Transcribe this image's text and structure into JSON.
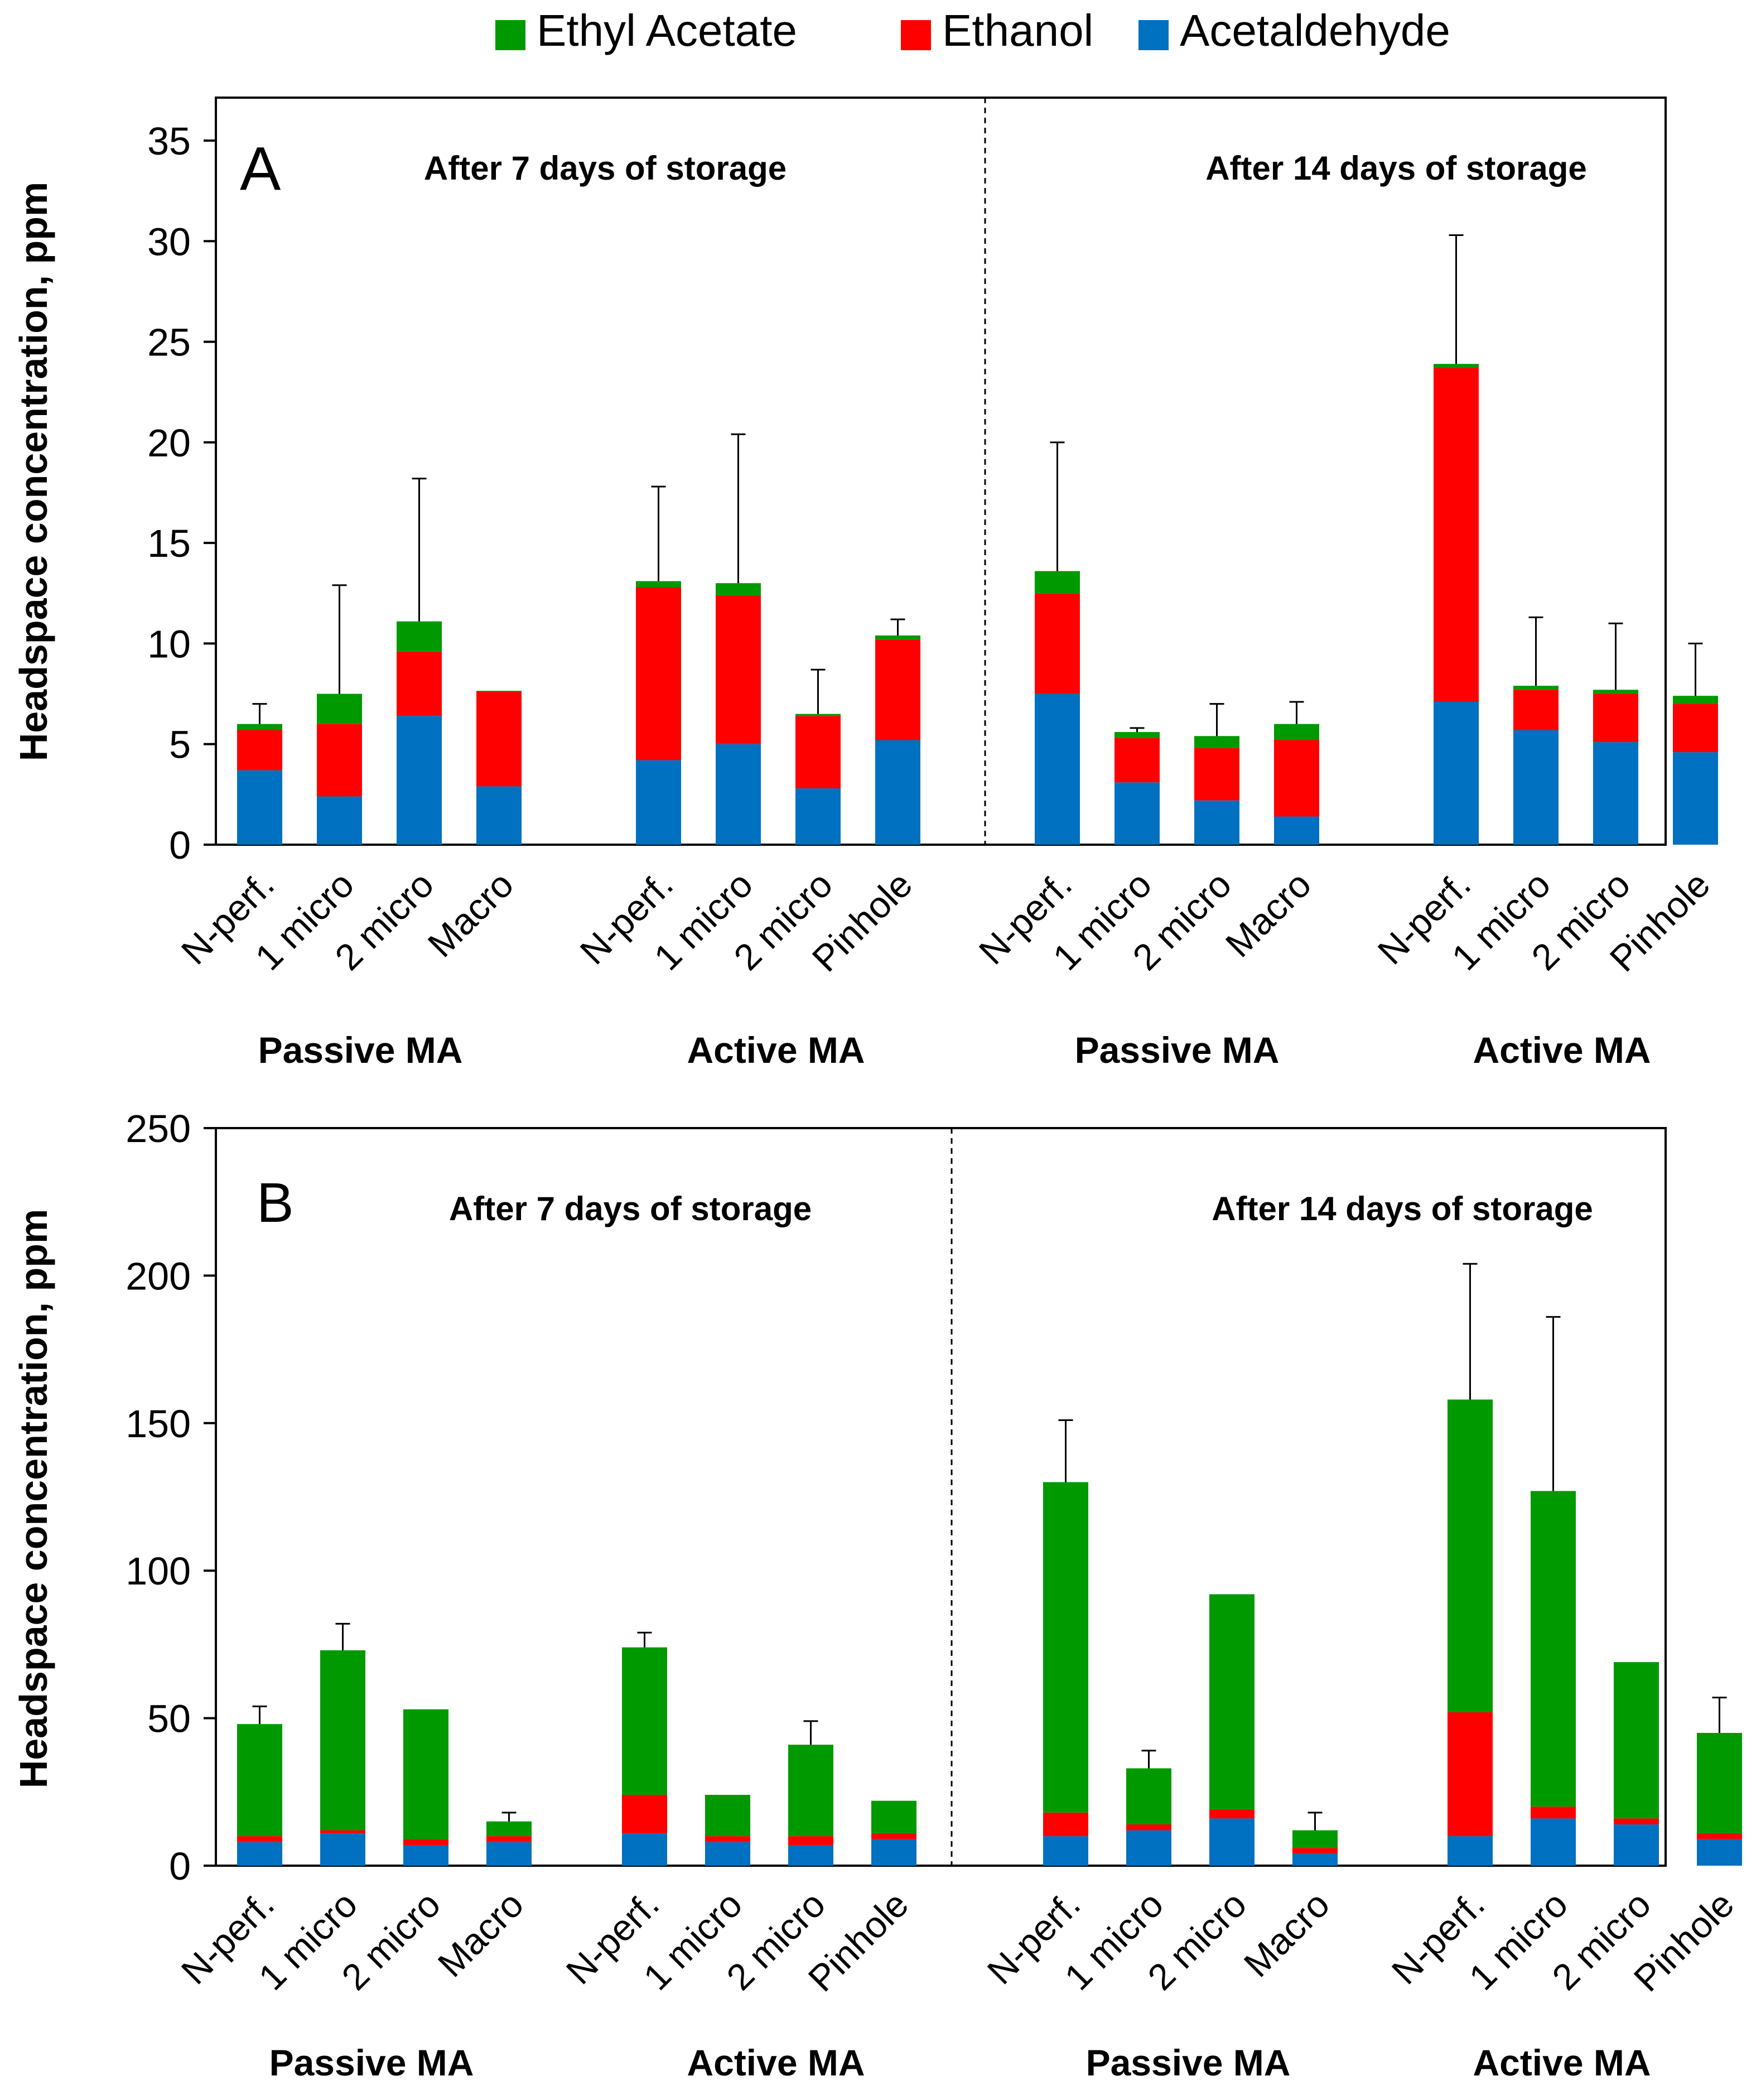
{
  "legend": [
    {
      "label": "Ethyl Acetate",
      "color": "#009900"
    },
    {
      "label": "Ethanol",
      "color": "#ff0000"
    },
    {
      "label": "Acetaldehyde",
      "color": "#0070c0"
    }
  ],
  "colors": {
    "ethyl_acetate": "#009900",
    "ethanol": "#ff0000",
    "acetaldehyde": "#0070c0",
    "error_bar": "#000000"
  },
  "chart_data": [
    {
      "type": "bar",
      "stacked": true,
      "panel_letter": "A",
      "ylabel": "Headspace concentration, ppm",
      "ylim": [
        0,
        35
      ],
      "yticks": [
        0,
        5,
        10,
        15,
        20,
        25,
        30,
        35
      ],
      "period_labels": [
        "After 7 days of storage",
        "After 14 days of storage"
      ],
      "groups": [
        {
          "label": "Passive MA",
          "period": 0,
          "categories": [
            "N-perf.",
            "1 micro",
            "2 micro",
            "Macro"
          ]
        },
        {
          "label": "Active MA",
          "period": 0,
          "categories": [
            "N-perf.",
            "1 micro",
            "2 micro",
            "Pinhole"
          ]
        },
        {
          "label": "Passive MA",
          "period": 1,
          "categories": [
            "N-perf.",
            "1 micro",
            "2 micro",
            "Macro"
          ]
        },
        {
          "label": "Active MA",
          "period": 1,
          "categories": [
            "N-perf.",
            "1 micro",
            "2 micro",
            "Pinhole"
          ]
        }
      ],
      "series": [
        {
          "name": "Acetaldehyde",
          "color": "#0070c0",
          "values": [
            3.7,
            2.4,
            6.4,
            2.9,
            4.2,
            5.0,
            2.8,
            5.2,
            7.5,
            3.1,
            2.2,
            1.4,
            7.1,
            5.7,
            5.1,
            4.6
          ]
        },
        {
          "name": "Ethanol",
          "color": "#ff0000",
          "values": [
            2.0,
            3.6,
            3.2,
            4.7,
            8.6,
            7.4,
            3.6,
            5.0,
            5.0,
            2.2,
            2.6,
            3.8,
            16.6,
            2.0,
            2.4,
            2.4
          ]
        },
        {
          "name": "Ethyl Acetate",
          "color": "#009900",
          "values": [
            0.3,
            1.5,
            1.5,
            0.05,
            0.3,
            0.6,
            0.1,
            0.2,
            1.1,
            0.3,
            0.6,
            0.8,
            0.2,
            0.2,
            0.2,
            0.4
          ]
        }
      ],
      "error_bars": [
        7.0,
        12.9,
        18.2,
        7.6,
        17.8,
        20.4,
        8.7,
        11.2,
        20.0,
        5.8,
        7.0,
        7.1,
        30.3,
        11.3,
        11.0,
        10.0
      ]
    },
    {
      "type": "bar",
      "stacked": true,
      "panel_letter": "B",
      "ylabel": "Headspace concentration, ppm",
      "ylim": [
        0,
        250
      ],
      "yticks": [
        0,
        50,
        100,
        150,
        200,
        250
      ],
      "period_labels": [
        "After 7 days of storage",
        "After 14 days of storage"
      ],
      "groups": [
        {
          "label": "Passive MA",
          "period": 0,
          "categories": [
            "N-perf.",
            "1 micro",
            "2 micro",
            "Macro"
          ]
        },
        {
          "label": "Active MA",
          "period": 0,
          "categories": [
            "N-perf.",
            "1 micro",
            "2 micro",
            "Pinhole"
          ]
        },
        {
          "label": "Passive MA",
          "period": 1,
          "categories": [
            "N-perf.",
            "1 micro",
            "2 micro",
            "Macro"
          ]
        },
        {
          "label": "Active MA",
          "period": 1,
          "categories": [
            "N-perf.",
            "1 micro",
            "2 micro",
            "Pinhole"
          ]
        }
      ],
      "series": [
        {
          "name": "Acetaldehyde",
          "color": "#0070c0",
          "values": [
            8,
            11,
            7,
            8,
            11,
            8,
            7,
            9,
            10,
            12,
            16,
            4,
            10,
            16,
            14,
            9
          ]
        },
        {
          "name": "Ethanol",
          "color": "#ff0000",
          "values": [
            2,
            1,
            2,
            2,
            13,
            2,
            3,
            2,
            8,
            2,
            3,
            2,
            42,
            4,
            2,
            2
          ]
        },
        {
          "name": "Ethyl Acetate",
          "color": "#009900",
          "values": [
            38,
            61,
            44,
            5,
            50,
            14,
            31,
            11,
            112,
            19,
            73,
            6,
            106,
            107,
            53,
            34
          ]
        }
      ],
      "error_bars": [
        54,
        82,
        53,
        18,
        79,
        24,
        49,
        22,
        151,
        39,
        92,
        18,
        204,
        186,
        69,
        57
      ]
    }
  ]
}
